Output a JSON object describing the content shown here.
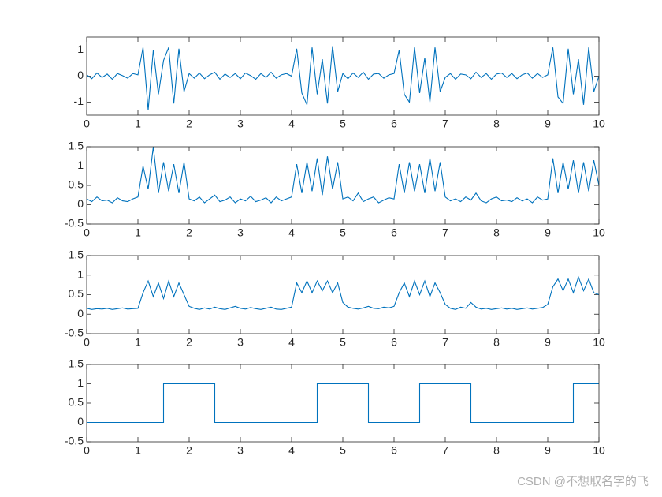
{
  "chart_data": [
    {
      "type": "line",
      "xlim": [
        0,
        10
      ],
      "xticks": [
        0,
        1,
        2,
        3,
        4,
        5,
        6,
        7,
        8,
        9,
        10
      ],
      "ylim": [
        -1.5,
        1.5
      ],
      "yticks": [
        -1,
        0,
        1
      ],
      "x": [
        0,
        0.1,
        0.2,
        0.3,
        0.4,
        0.5,
        0.6,
        0.7,
        0.8,
        0.9,
        1,
        1.1,
        1.2,
        1.3,
        1.4,
        1.5,
        1.6,
        1.7,
        1.8,
        1.9,
        2,
        2.1,
        2.2,
        2.3,
        2.4,
        2.5,
        2.6,
        2.7,
        2.8,
        2.9,
        3,
        3.1,
        3.2,
        3.3,
        3.4,
        3.5,
        3.6,
        3.7,
        3.8,
        3.9,
        4,
        4.1,
        4.2,
        4.3,
        4.4,
        4.5,
        4.6,
        4.7,
        4.8,
        4.9,
        5,
        5.1,
        5.2,
        5.3,
        5.4,
        5.5,
        5.6,
        5.7,
        5.8,
        5.9,
        6,
        6.1,
        6.2,
        6.3,
        6.4,
        6.5,
        6.6,
        6.7,
        6.8,
        6.9,
        7,
        7.1,
        7.2,
        7.3,
        7.4,
        7.5,
        7.6,
        7.7,
        7.8,
        7.9,
        8,
        8.1,
        8.2,
        8.3,
        8.4,
        8.5,
        8.6,
        8.7,
        8.8,
        8.9,
        9,
        9.1,
        9.2,
        9.3,
        9.4,
        9.5,
        9.6,
        9.7,
        9.8,
        9.9,
        10
      ],
      "series": [
        {
          "color": "#0072bd",
          "values": [
            0.05,
            -0.1,
            0.12,
            -0.05,
            0.08,
            -0.12,
            0.1,
            0.02,
            -0.08,
            0.1,
            0.05,
            1.1,
            -1.3,
            1.0,
            -0.7,
            0.6,
            1.1,
            -1.05,
            1.05,
            -0.6,
            0.1,
            -0.08,
            0.12,
            -0.1,
            0.05,
            0.15,
            -0.12,
            0.08,
            -0.05,
            0.1,
            -0.1,
            0.12,
            0.02,
            -0.12,
            0.1,
            -0.05,
            0.15,
            -0.08,
            0.05,
            0.1,
            0.0,
            1.05,
            -0.65,
            -1.1,
            1.1,
            -0.7,
            0.65,
            -1.05,
            1.15,
            -0.6,
            0.1,
            -0.1,
            0.12,
            -0.05,
            0.15,
            -0.12,
            0.08,
            0.1,
            -0.08,
            0.05,
            0.1,
            1.0,
            -0.7,
            -1.0,
            1.1,
            -0.65,
            0.7,
            -1.0,
            1.1,
            -0.6,
            -0.05,
            0.1,
            -0.12,
            0.08,
            0.05,
            -0.1,
            0.15,
            -0.05,
            0.1,
            -0.12,
            0.08,
            0.12,
            -0.05,
            0.1,
            -0.1,
            0.05,
            0.12,
            -0.08,
            0.1,
            -0.05,
            0.05,
            1.1,
            -0.8,
            -1.05,
            1.05,
            -0.7,
            0.65,
            -1.1,
            1.1,
            -0.6,
            0.0
          ]
        }
      ]
    },
    {
      "type": "line",
      "xlim": [
        0,
        10
      ],
      "xticks": [
        0,
        1,
        2,
        3,
        4,
        5,
        6,
        7,
        8,
        9,
        10
      ],
      "ylim": [
        -0.5,
        1.5
      ],
      "yticks": [
        -0.5,
        0,
        0.5,
        1,
        1.5
      ],
      "x": [
        0,
        0.1,
        0.2,
        0.3,
        0.4,
        0.5,
        0.6,
        0.7,
        0.8,
        0.9,
        1,
        1.1,
        1.2,
        1.3,
        1.4,
        1.5,
        1.6,
        1.7,
        1.8,
        1.9,
        2,
        2.1,
        2.2,
        2.3,
        2.4,
        2.5,
        2.6,
        2.7,
        2.8,
        2.9,
        3,
        3.1,
        3.2,
        3.3,
        3.4,
        3.5,
        3.6,
        3.7,
        3.8,
        3.9,
        4,
        4.1,
        4.2,
        4.3,
        4.4,
        4.5,
        4.6,
        4.7,
        4.8,
        4.9,
        5,
        5.1,
        5.2,
        5.3,
        5.4,
        5.5,
        5.6,
        5.7,
        5.8,
        5.9,
        6,
        6.1,
        6.2,
        6.3,
        6.4,
        6.5,
        6.6,
        6.7,
        6.8,
        6.9,
        7,
        7.1,
        7.2,
        7.3,
        7.4,
        7.5,
        7.6,
        7.7,
        7.8,
        7.9,
        8,
        8.1,
        8.2,
        8.3,
        8.4,
        8.5,
        8.6,
        8.7,
        8.8,
        8.9,
        9,
        9.1,
        9.2,
        9.3,
        9.4,
        9.5,
        9.6,
        9.7,
        9.8,
        9.9,
        10
      ],
      "series": [
        {
          "color": "#0072bd",
          "values": [
            0.15,
            0.08,
            0.2,
            0.1,
            0.12,
            0.05,
            0.18,
            0.1,
            0.08,
            0.15,
            0.2,
            1.0,
            0.4,
            1.5,
            0.3,
            1.1,
            0.35,
            1.05,
            0.3,
            1.1,
            0.15,
            0.1,
            0.2,
            0.05,
            0.15,
            0.25,
            0.08,
            0.12,
            0.2,
            0.05,
            0.15,
            0.1,
            0.22,
            0.08,
            0.12,
            0.18,
            0.05,
            0.2,
            0.1,
            0.15,
            0.2,
            1.05,
            0.3,
            1.1,
            0.35,
            1.2,
            0.25,
            1.25,
            0.4,
            1.1,
            0.15,
            0.2,
            0.1,
            0.3,
            0.08,
            0.15,
            0.2,
            0.05,
            0.12,
            0.18,
            0.15,
            1.05,
            0.3,
            1.1,
            0.35,
            1.05,
            0.3,
            1.2,
            0.35,
            1.1,
            0.2,
            0.1,
            0.15,
            0.08,
            0.2,
            0.12,
            0.3,
            0.1,
            0.05,
            0.15,
            0.2,
            0.1,
            0.12,
            0.08,
            0.18,
            0.1,
            0.15,
            0.05,
            0.2,
            0.12,
            0.15,
            1.2,
            0.3,
            1.1,
            0.4,
            1.15,
            0.3,
            1.1,
            0.35,
            1.15,
            0.5
          ]
        }
      ]
    },
    {
      "type": "line",
      "xlim": [
        0,
        10
      ],
      "xticks": [
        0,
        1,
        2,
        3,
        4,
        5,
        6,
        7,
        8,
        9,
        10
      ],
      "ylim": [
        -0.5,
        1.5
      ],
      "yticks": [
        -0.5,
        0,
        0.5,
        1,
        1.5
      ],
      "x": [
        0,
        0.1,
        0.2,
        0.3,
        0.4,
        0.5,
        0.6,
        0.7,
        0.8,
        0.9,
        1,
        1.1,
        1.2,
        1.3,
        1.4,
        1.5,
        1.6,
        1.7,
        1.8,
        1.9,
        2,
        2.1,
        2.2,
        2.3,
        2.4,
        2.5,
        2.6,
        2.7,
        2.8,
        2.9,
        3,
        3.1,
        3.2,
        3.3,
        3.4,
        3.5,
        3.6,
        3.7,
        3.8,
        3.9,
        4,
        4.1,
        4.2,
        4.3,
        4.4,
        4.5,
        4.6,
        4.7,
        4.8,
        4.9,
        5,
        5.1,
        5.2,
        5.3,
        5.4,
        5.5,
        5.6,
        5.7,
        5.8,
        5.9,
        6,
        6.1,
        6.2,
        6.3,
        6.4,
        6.5,
        6.6,
        6.7,
        6.8,
        6.9,
        7,
        7.1,
        7.2,
        7.3,
        7.4,
        7.5,
        7.6,
        7.7,
        7.8,
        7.9,
        8,
        8.1,
        8.2,
        8.3,
        8.4,
        8.5,
        8.6,
        8.7,
        8.8,
        8.9,
        9,
        9.1,
        9.2,
        9.3,
        9.4,
        9.5,
        9.6,
        9.7,
        9.8,
        9.9,
        10
      ],
      "series": [
        {
          "color": "#0072bd",
          "values": [
            0.15,
            0.12,
            0.14,
            0.13,
            0.15,
            0.12,
            0.14,
            0.16,
            0.13,
            0.14,
            0.15,
            0.55,
            0.85,
            0.45,
            0.8,
            0.4,
            0.85,
            0.45,
            0.8,
            0.5,
            0.2,
            0.15,
            0.12,
            0.16,
            0.13,
            0.18,
            0.14,
            0.12,
            0.16,
            0.2,
            0.15,
            0.13,
            0.17,
            0.14,
            0.12,
            0.15,
            0.18,
            0.13,
            0.12,
            0.15,
            0.18,
            0.8,
            0.55,
            0.85,
            0.55,
            0.85,
            0.6,
            0.85,
            0.55,
            0.8,
            0.3,
            0.18,
            0.15,
            0.13,
            0.16,
            0.2,
            0.15,
            0.14,
            0.18,
            0.16,
            0.2,
            0.55,
            0.8,
            0.45,
            0.85,
            0.5,
            0.85,
            0.45,
            0.8,
            0.55,
            0.25,
            0.15,
            0.12,
            0.18,
            0.15,
            0.3,
            0.18,
            0.13,
            0.15,
            0.12,
            0.14,
            0.16,
            0.13,
            0.15,
            0.12,
            0.14,
            0.16,
            0.13,
            0.15,
            0.17,
            0.25,
            0.7,
            0.9,
            0.6,
            0.9,
            0.55,
            0.95,
            0.6,
            0.9,
            0.55,
            0.5
          ]
        }
      ]
    },
    {
      "type": "line",
      "xlim": [
        0,
        10
      ],
      "xticks": [
        0,
        1,
        2,
        3,
        4,
        5,
        6,
        7,
        8,
        9,
        10
      ],
      "ylim": [
        -0.5,
        1.5
      ],
      "yticks": [
        -0.5,
        0,
        0.5,
        1,
        1.5
      ],
      "x": [
        0,
        1.5,
        1.5,
        2.5,
        2.5,
        4.5,
        4.5,
        5.5,
        5.5,
        6.5,
        6.5,
        7.5,
        7.5,
        9.5,
        9.5,
        10
      ],
      "series": [
        {
          "color": "#0072bd",
          "values": [
            0,
            0,
            1,
            1,
            0,
            0,
            1,
            1,
            0,
            0,
            1,
            1,
            0,
            0,
            1,
            1
          ]
        }
      ]
    }
  ],
  "watermark": "CSDN @不想取名字的飞"
}
